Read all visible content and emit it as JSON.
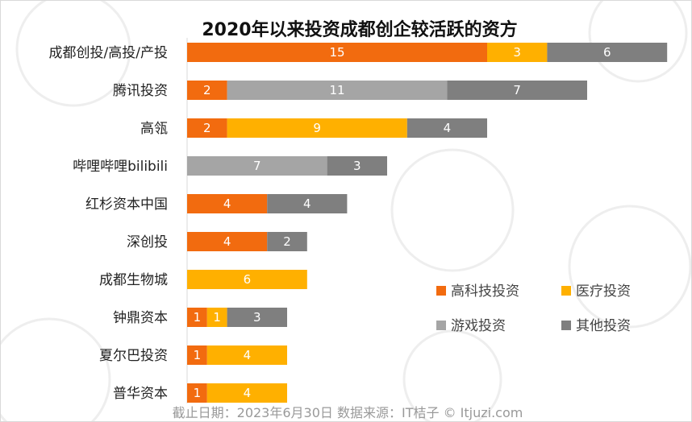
{
  "chart_data": {
    "type": "bar",
    "orientation": "horizontal",
    "stacked": true,
    "title": "2020年以来投资成都创企较活跃的资方",
    "categories": [
      "成都创投/高投/产投",
      "腾讯投资",
      "高瓴",
      "哔哩哔哩bilibili",
      "红杉资本中国",
      "深创投",
      "成都生物城",
      "钟鼎资本",
      "夏尔巴投资",
      "普华资本"
    ],
    "series": [
      {
        "name": "高科技投资",
        "color": "#f26b0f",
        "values": [
          15,
          2,
          2,
          0,
          4,
          4,
          0,
          1,
          1,
          1
        ]
      },
      {
        "name": "医疗投资",
        "color": "#ffb000",
        "values": [
          3,
          0,
          9,
          0,
          0,
          0,
          6,
          1,
          4,
          4
        ]
      },
      {
        "name": "游戏投资",
        "color": "#a5a5a5",
        "values": [
          0,
          11,
          0,
          7,
          0,
          0,
          0,
          0,
          0,
          0
        ]
      },
      {
        "name": "其他投资",
        "color": "#7f7f7f",
        "values": [
          6,
          7,
          4,
          3,
          4,
          2,
          0,
          3,
          0,
          0
        ]
      }
    ],
    "xlim": [
      0,
      24
    ],
    "grid": false,
    "legend_position": "bottom-right"
  },
  "footer": {
    "text": "截止日期：2023年6月30日    数据来源：IT桔子 © Itjuzi.com"
  }
}
